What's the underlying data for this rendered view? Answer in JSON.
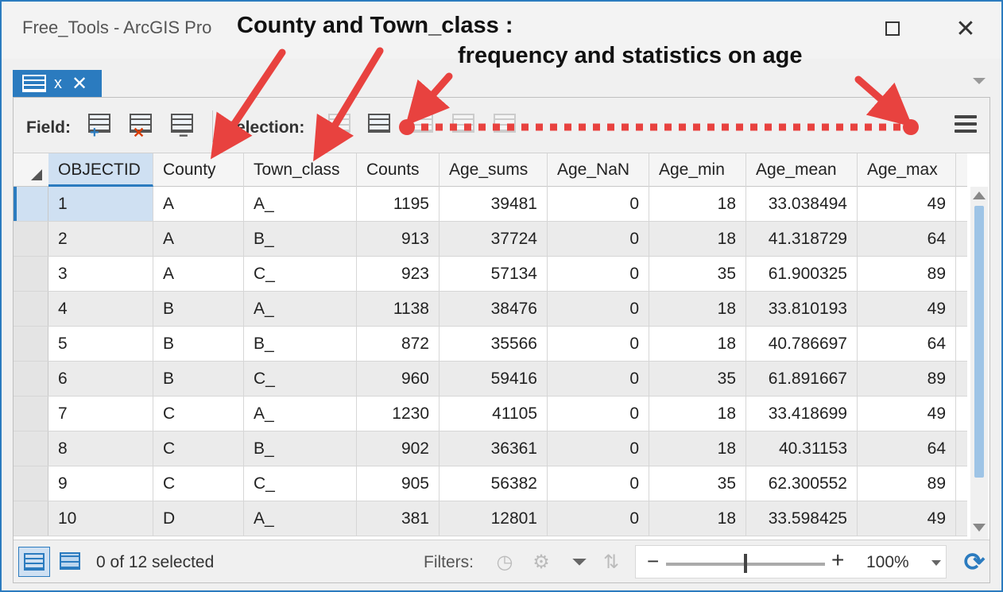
{
  "window": {
    "title": "Free_Tools - ArcGIS Pro",
    "maximize_icon": "square-icon",
    "close_glyph": "✕"
  },
  "tab": {
    "label": "x",
    "close_glyph": "✕"
  },
  "toolbar": {
    "field_label": "Field:",
    "selection_label": "Selection:"
  },
  "table": {
    "columns": [
      {
        "name": "OBJECTID"
      },
      {
        "name": "County"
      },
      {
        "name": "Town_class"
      },
      {
        "name": "Counts"
      },
      {
        "name": "Age_sums"
      },
      {
        "name": "Age_NaN"
      },
      {
        "name": "Age_min"
      },
      {
        "name": "Age_mean"
      },
      {
        "name": "Age_max"
      }
    ],
    "rows": [
      [
        "1",
        "A",
        "A_",
        "1195",
        "39481",
        "0",
        "18",
        "33.038494",
        "49"
      ],
      [
        "2",
        "A",
        "B_",
        "913",
        "37724",
        "0",
        "18",
        "41.318729",
        "64"
      ],
      [
        "3",
        "A",
        "C_",
        "923",
        "57134",
        "0",
        "35",
        "61.900325",
        "89"
      ],
      [
        "4",
        "B",
        "A_",
        "1138",
        "38476",
        "0",
        "18",
        "33.810193",
        "49"
      ],
      [
        "5",
        "B",
        "B_",
        "872",
        "35566",
        "0",
        "18",
        "40.786697",
        "64"
      ],
      [
        "6",
        "B",
        "C_",
        "960",
        "59416",
        "0",
        "35",
        "61.891667",
        "89"
      ],
      [
        "7",
        "C",
        "A_",
        "1230",
        "41105",
        "0",
        "18",
        "33.418699",
        "49"
      ],
      [
        "8",
        "C",
        "B_",
        "902",
        "36361",
        "0",
        "18",
        "40.31153",
        "64"
      ],
      [
        "9",
        "C",
        "C_",
        "905",
        "56382",
        "0",
        "35",
        "62.300552",
        "89"
      ],
      [
        "10",
        "D",
        "A_",
        "381",
        "12801",
        "0",
        "18",
        "33.598425",
        "49"
      ]
    ]
  },
  "status": {
    "selected_text": "0 of 12 selected",
    "filters_label": "Filters:",
    "zoom_minus": "−",
    "zoom_plus": "+",
    "zoom_value": "100%",
    "zoom_level_percent": 100
  },
  "annotations": {
    "line1": "County and Town_class :",
    "line2": "frequency and statistics on age",
    "color": "#e8423f"
  },
  "colors": {
    "accent": "#2b7bbf",
    "selected_bg": "#cfe0f2"
  }
}
